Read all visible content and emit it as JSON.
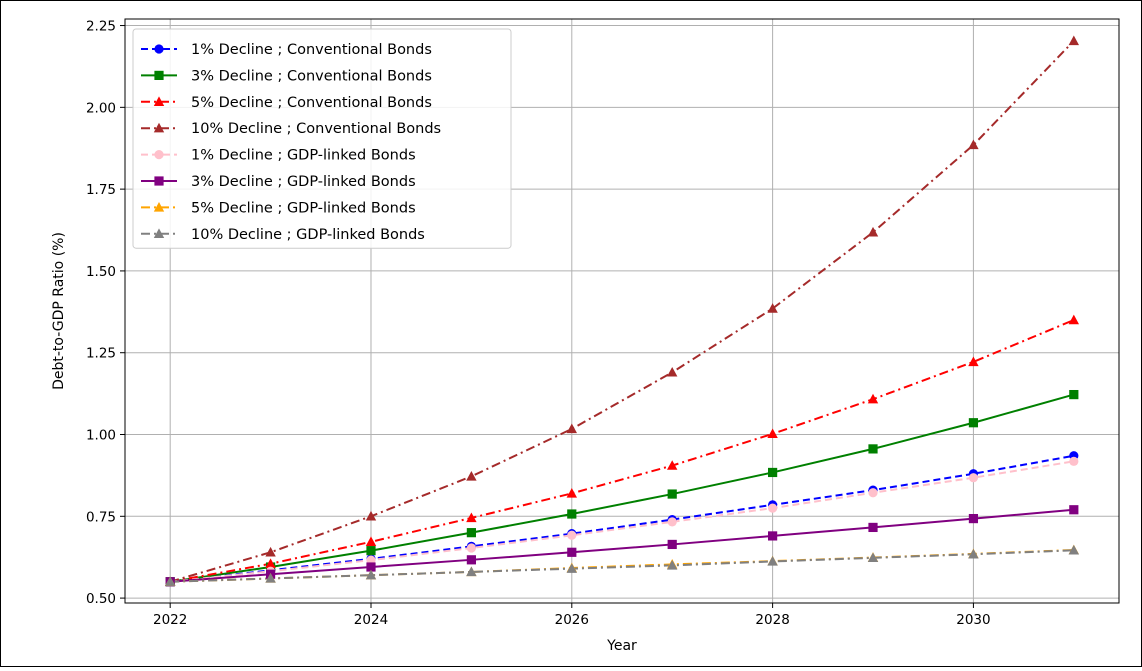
{
  "chart_data": {
    "type": "line",
    "title": "",
    "xlabel": "Year",
    "ylabel": "Debt-to-GDP Ratio (%)",
    "xlim": [
      2021.55,
      2031.45
    ],
    "ylim": [
      0.485,
      2.27
    ],
    "x_ticks": [
      2022,
      2024,
      2026,
      2028,
      2030
    ],
    "y_ticks": [
      0.5,
      0.75,
      1.0,
      1.25,
      1.5,
      1.75,
      2.0,
      2.25
    ],
    "x_tick_labels": [
      "2022",
      "2024",
      "2026",
      "2028",
      "2030"
    ],
    "y_tick_labels": [
      "0.50",
      "0.75",
      "1.00",
      "1.25",
      "1.50",
      "1.75",
      "2.00",
      "2.25"
    ],
    "grid": true,
    "legend_position": "upper-left",
    "x": [
      2022,
      2023,
      2024,
      2025,
      2026,
      2027,
      2028,
      2029,
      2030,
      2031
    ],
    "series": [
      {
        "name": "1% Decline ; Conventional Bonds",
        "color": "#0000ff",
        "marker": "circle",
        "linestyle": "dashed",
        "values": [
          0.55,
          0.585,
          0.62,
          0.658,
          0.697,
          0.74,
          0.785,
          0.83,
          0.88,
          0.935
        ]
      },
      {
        "name": "3% Decline  ; Conventional Bonds",
        "color": "#008000",
        "marker": "square",
        "linestyle": "solid",
        "values": [
          0.55,
          0.595,
          0.645,
          0.7,
          0.757,
          0.818,
          0.884,
          0.956,
          1.036,
          1.122
        ]
      },
      {
        "name": "5% Decline ; Conventional Bonds",
        "color": "#ff0000",
        "marker": "triangle",
        "linestyle": "dashdot",
        "values": [
          0.55,
          0.605,
          0.672,
          0.745,
          0.82,
          0.905,
          1.002,
          1.108,
          1.222,
          1.35
        ]
      },
      {
        "name": "10% Decline  ; Conventional Bonds",
        "color": "#a52a2a",
        "marker": "triangle",
        "linestyle": "dashdot",
        "values": [
          0.55,
          0.64,
          0.75,
          0.872,
          1.017,
          1.19,
          1.385,
          1.618,
          1.885,
          2.203
        ]
      },
      {
        "name": "1% Decline ; GDP-linked Bonds",
        "color": "#ffc0cb",
        "marker": "circle",
        "linestyle": "dashed",
        "values": [
          0.55,
          0.582,
          0.616,
          0.653,
          0.692,
          0.733,
          0.775,
          0.822,
          0.868,
          0.918
        ]
      },
      {
        "name": "3% Decline ; GDP-linked Bonds",
        "color": "#800080",
        "marker": "square",
        "linestyle": "solid",
        "values": [
          0.55,
          0.573,
          0.595,
          0.617,
          0.64,
          0.664,
          0.69,
          0.716,
          0.743,
          0.77
        ]
      },
      {
        "name": "5% Decline ; GDP-linked Bonds",
        "color": "#ffa500",
        "marker": "triangle",
        "linestyle": "dashdot",
        "values": [
          0.55,
          0.56,
          0.57,
          0.58,
          0.592,
          0.603,
          0.613,
          0.624,
          0.635,
          0.647
        ]
      },
      {
        "name": "10% Decline ; GDP-linked Bonds",
        "color": "#808080",
        "marker": "triangle",
        "linestyle": "dashdot",
        "values": [
          0.55,
          0.56,
          0.57,
          0.58,
          0.59,
          0.6,
          0.612,
          0.623,
          0.634,
          0.646
        ]
      }
    ]
  }
}
